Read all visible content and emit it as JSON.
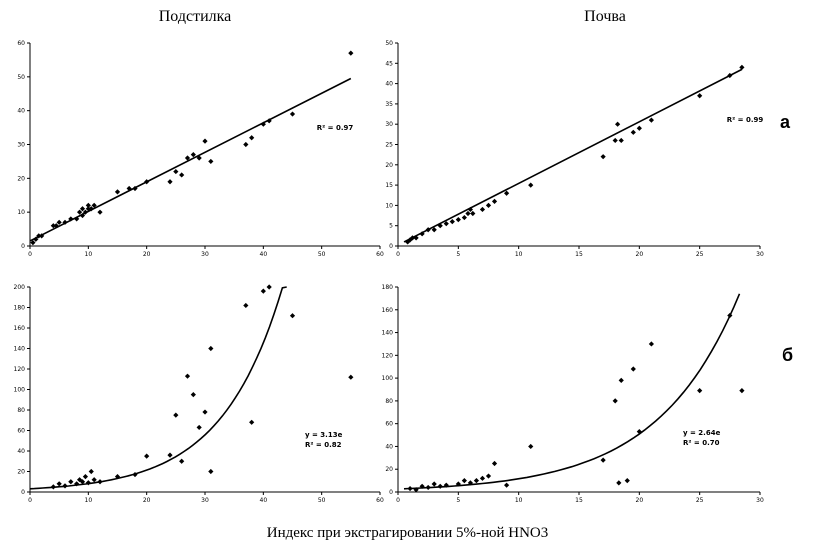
{
  "column_titles": {
    "left": "Подстилка",
    "right": "Почва"
  },
  "row_labels": {
    "a": "а",
    "b": "б"
  },
  "x_caption": "Индекс при экстрагировании 5%-ной HNO3",
  "chart_data": [
    {
      "id": "top-left",
      "type": "scatter",
      "title": "Подстилка",
      "row": "а",
      "xlim": [
        0,
        60
      ],
      "ylim": [
        0,
        60
      ],
      "xticks": [
        0,
        10,
        20,
        30,
        40,
        50,
        60
      ],
      "yticks": [
        0,
        10,
        20,
        30,
        40,
        50,
        60
      ],
      "x": [
        0.5,
        1,
        1.5,
        2,
        4,
        4.5,
        5,
        6,
        7,
        8,
        8.5,
        9,
        9,
        9.5,
        10,
        10,
        10.5,
        11,
        12,
        15,
        17,
        18,
        20,
        24,
        25,
        26,
        27,
        28,
        29,
        30,
        31,
        37,
        38,
        40,
        41,
        45,
        55
      ],
      "y": [
        1,
        2,
        3,
        3,
        6,
        6,
        7,
        7,
        8,
        8,
        10,
        9,
        11,
        10,
        11,
        12,
        11,
        12,
        10,
        16,
        17,
        17,
        19,
        19,
        22,
        21,
        26,
        27,
        26,
        31,
        25,
        30,
        32,
        36,
        37,
        39,
        57
      ],
      "trendline": {
        "type": "linear",
        "x": [
          0,
          55
        ],
        "y": [
          1.5,
          49.5
        ]
      },
      "annotation": "R² = 0.97"
    },
    {
      "id": "top-right",
      "type": "scatter",
      "title": "Почва",
      "row": "а",
      "xlim": [
        0,
        30
      ],
      "ylim": [
        0,
        50
      ],
      "xticks": [
        0,
        5,
        10,
        15,
        20,
        25,
        30
      ],
      "yticks": [
        0,
        5,
        10,
        15,
        20,
        25,
        30,
        35,
        40,
        45,
        50
      ],
      "x": [
        0.8,
        1,
        1.2,
        1.5,
        2,
        2.5,
        3,
        3.5,
        4,
        4.5,
        5,
        5.5,
        5.8,
        6,
        6.2,
        7,
        7.5,
        8,
        9,
        11,
        17,
        18,
        18.2,
        18.5,
        19.5,
        20,
        21,
        25,
        27.5,
        28.5
      ],
      "y": [
        1,
        1.5,
        2,
        2,
        3,
        4,
        4,
        5,
        5.5,
        6,
        6.5,
        7,
        8,
        9,
        8,
        9,
        10,
        11,
        13,
        15,
        22,
        26,
        30,
        26,
        28,
        29,
        31,
        37,
        42,
        44
      ],
      "trendline": {
        "type": "linear",
        "x": [
          0.5,
          28.5
        ],
        "y": [
          1,
          43.5
        ]
      },
      "annotation": "R² = 0.99"
    },
    {
      "id": "bottom-left",
      "type": "scatter",
      "row": "б",
      "xlim": [
        0,
        60
      ],
      "ylim": [
        0,
        200
      ],
      "xticks": [
        0,
        10,
        20,
        30,
        40,
        50,
        60
      ],
      "yticks": [
        0,
        20,
        40,
        60,
        80,
        100,
        120,
        140,
        160,
        180,
        200
      ],
      "x": [
        4,
        5,
        6,
        7,
        8,
        8.5,
        9,
        9.5,
        10,
        10.5,
        11,
        12,
        15,
        18,
        20,
        24,
        25,
        26,
        27,
        28,
        29,
        30,
        31,
        31,
        37,
        38,
        40,
        41,
        45,
        55
      ],
      "y": [
        5,
        8,
        6,
        10,
        8,
        12,
        10,
        15,
        9,
        20,
        12,
        10,
        15,
        17,
        35,
        36,
        75,
        30,
        113,
        95,
        63,
        78,
        20,
        140,
        182,
        68,
        196,
        200,
        172,
        112
      ],
      "trendline": {
        "type": "exponential",
        "a": 3.13,
        "b": 0.096,
        "x_range": [
          0,
          44
        ]
      },
      "annotation_lines": [
        "y = 3.13e",
        "R² = 0.82"
      ]
    },
    {
      "id": "bottom-right",
      "type": "scatter",
      "row": "б",
      "xlim": [
        0,
        30
      ],
      "ylim": [
        0,
        180
      ],
      "xticks": [
        0,
        5,
        10,
        15,
        20,
        25,
        30
      ],
      "yticks": [
        0,
        20,
        40,
        60,
        80,
        100,
        120,
        140,
        160,
        180
      ],
      "x": [
        1,
        1.5,
        2,
        2.5,
        3,
        3.5,
        4,
        5,
        5.5,
        6,
        6.5,
        7,
        7.5,
        8,
        9,
        11,
        17,
        18,
        18.3,
        18.5,
        19,
        19.5,
        20,
        21,
        25,
        27.5,
        28.5
      ],
      "y": [
        3,
        2,
        5,
        4,
        7,
        5,
        6,
        7,
        10,
        8,
        10,
        12,
        14,
        25,
        6,
        40,
        28,
        80,
        8,
        98,
        10,
        108,
        53,
        130,
        89,
        155,
        89
      ],
      "trendline": {
        "type": "exponential",
        "a": 2.64,
        "b": 0.148,
        "x_range": [
          0.5,
          28.3
        ]
      },
      "annotation_lines": [
        "y = 2.64e",
        "R² = 0.70"
      ]
    }
  ]
}
